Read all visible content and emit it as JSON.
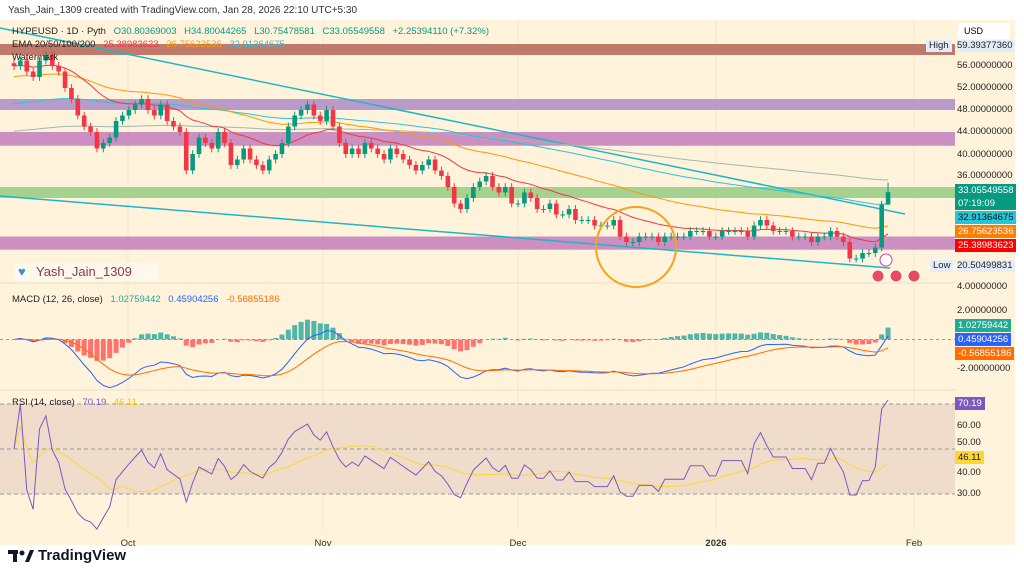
{
  "header": {
    "created_by": "Yash_Jain_1309 created with TradingView.com, Jan 28, 2026 22:10 UTC+5:30"
  },
  "legend": {
    "symbol": "HYPEUSD · 1D · Pyth",
    "open": "O30.80369003",
    "high": "H34.80044265",
    "low": "L30.75478581",
    "close": "C33.05549558",
    "change": "+2.25394110 (+7.32%)",
    "ema_label": "EMA 20/50/100/200",
    "ema20": "25.38983623",
    "ema50": "26.75623536",
    "ema100": "32.91364675",
    "watermark_label": "Watermark",
    "macd_label": "MACD (12, 26, close)",
    "macd_hist": "1.02759442",
    "macd_line": "0.45904256",
    "macd_signal": "-0.56855186",
    "rsi_label": "RSI (14, close)",
    "rsi": "70.19",
    "rsi_ma": "46.11"
  },
  "watermark_user": "Yash_Jain_1309",
  "price_axis": {
    "currency": "USD",
    "ticks": [
      "56.00000000",
      "52.00000000",
      "48.00000000",
      "44.00000000",
      "40.00000000",
      "36.00000000",
      "4.00000000"
    ],
    "high_label": "High",
    "high_value": "59.39377360",
    "low_label": "Low",
    "low_value": "20.50499831",
    "last_price": "33.05549558",
    "countdown": "07:19:09",
    "ema100_tag": "32.91364675",
    "ema50_tag": "26.75623536",
    "ema20_tag": "25.38983623"
  },
  "macd_axis": {
    "ticks": [
      "2.00000000",
      "-2.00000000"
    ],
    "hist_tag": "1.02759442",
    "macd_tag": "0.45904256",
    "signal_tag": "-0.56855186"
  },
  "rsi_axis": {
    "ticks": [
      "60.00",
      "50.00",
      "40.00",
      "30.00"
    ],
    "rsi_tag": "70.19",
    "ma_tag": "46.11"
  },
  "time_axis": {
    "ticks": [
      "Oct",
      "Nov",
      "Dec",
      "2026",
      "Feb"
    ]
  },
  "brand": {
    "name": "TradingView"
  },
  "colors": {
    "up": "#089981",
    "down": "#f23645",
    "ema20": "#f23645",
    "ema50": "#ff9800",
    "ema100": "#26c6da",
    "ema200": "#9fb8b0",
    "background": "#fff3dc",
    "macd": "#2962ff",
    "signal": "#ff6d00",
    "rsi": "#7e57c2",
    "rsi_ma": "#fdd835"
  },
  "chart_data": {
    "type": "candlestick",
    "title": "HYPEUSD · 1D · Pyth",
    "x_ticks": [
      "Oct",
      "Nov",
      "Dec",
      "2026",
      "Feb"
    ],
    "ylim": [
      4,
      60
    ],
    "zones": [
      {
        "from": 58,
        "to": 60,
        "color": "#bf7a6c"
      },
      {
        "from": 48,
        "to": 50,
        "color": "#b89bc8"
      },
      {
        "from": 41.5,
        "to": 44,
        "color": "#cb8fc2"
      },
      {
        "from": 32,
        "to": 34,
        "color": "#a6d290"
      },
      {
        "from": 22.6,
        "to": 25,
        "color": "#cb8fc2"
      }
    ],
    "start_date": "2025-09-13",
    "close": [
      56,
      57,
      55,
      54,
      57,
      58,
      56,
      55,
      52,
      50,
      47,
      45,
      44,
      41,
      42,
      43,
      46,
      47,
      48,
      49,
      50,
      48,
      47,
      49,
      46,
      45,
      44,
      37,
      40,
      43,
      42,
      41,
      44,
      42,
      38,
      39,
      41,
      39,
      38,
      37,
      39,
      40,
      42,
      45,
      47,
      48,
      49,
      47,
      46,
      48,
      45,
      42,
      40,
      41,
      40,
      42,
      41,
      40,
      39,
      41,
      40,
      39,
      38,
      37,
      38,
      39,
      37,
      36,
      34,
      31,
      30,
      32,
      34,
      35,
      36,
      34,
      33,
      34,
      31,
      31,
      33,
      32,
      30,
      30,
      31,
      29,
      29,
      30,
      28,
      28,
      28,
      27,
      27,
      27,
      28,
      25,
      24,
      24,
      25,
      25,
      25,
      24,
      25,
      25,
      25,
      25,
      26,
      26,
      26,
      25,
      25,
      26,
      26,
      26,
      26,
      25,
      27,
      28,
      27,
      26,
      26,
      26,
      25,
      25,
      25,
      24,
      25,
      25,
      26,
      25,
      24,
      21,
      21,
      22,
      22,
      23,
      30.8,
      33.06
    ],
    "last_candle": {
      "open": 30.80369003,
      "high": 34.80044265,
      "low": 30.75478581,
      "close": 33.05549558
    }
  }
}
